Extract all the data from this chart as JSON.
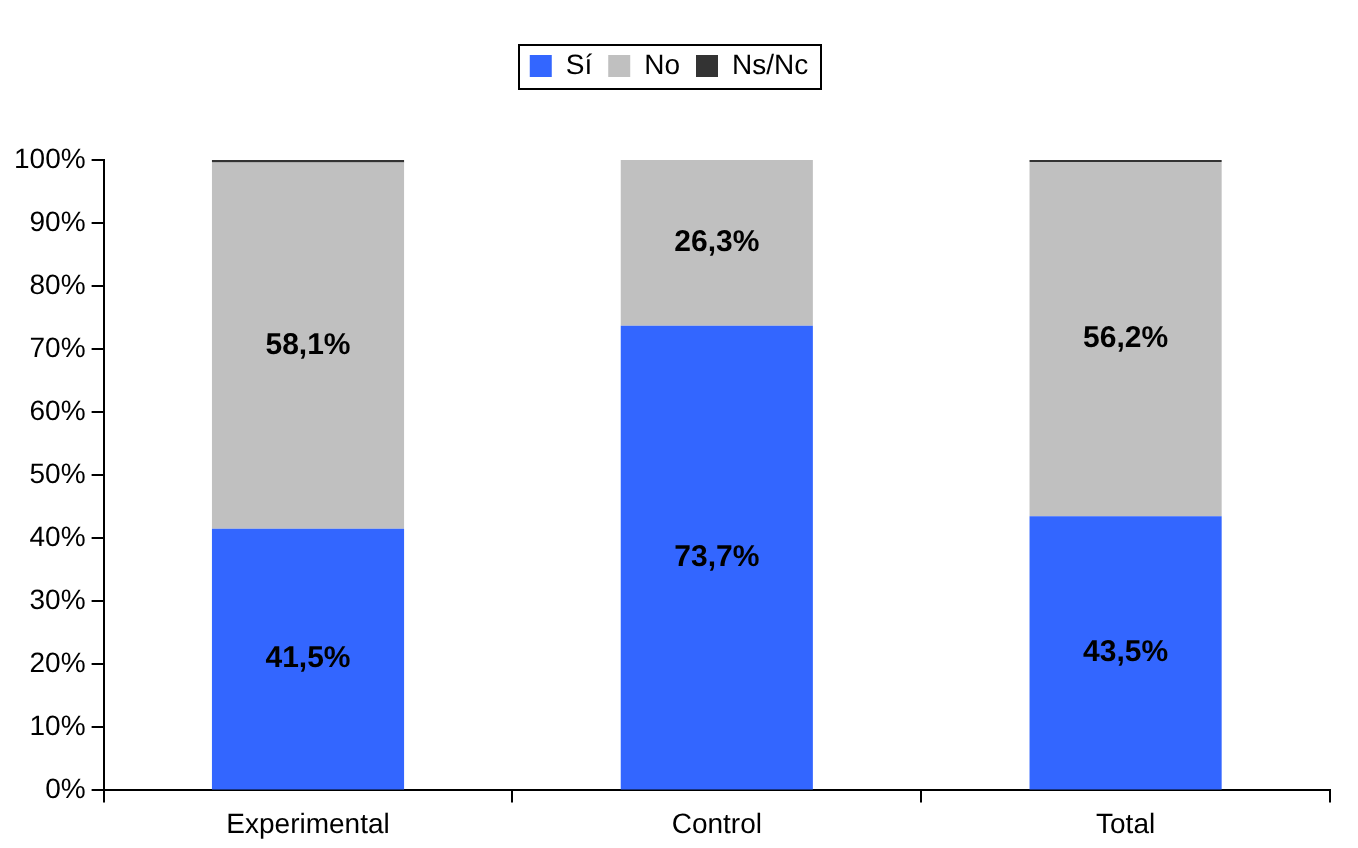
{
  "chart_data": {
    "type": "bar",
    "stacked": true,
    "categories": [
      "Experimental",
      "Control",
      "Total"
    ],
    "series": [
      {
        "name": "Sí",
        "color": "#3366ff",
        "values": [
          41.5,
          73.7,
          43.5
        ],
        "value_labels": [
          "41,5%",
          "73,7%",
          "43,5%"
        ]
      },
      {
        "name": "No",
        "color": "#c0c0c0",
        "values": [
          58.1,
          26.3,
          56.2
        ],
        "value_labels": [
          "58,1%",
          "26,3%",
          "56,2%"
        ]
      },
      {
        "name": "Ns/Nc",
        "color": "#333333",
        "values": [
          0.4,
          0,
          0.3
        ],
        "value_labels": [
          null,
          null,
          null
        ]
      }
    ],
    "ylim": [
      0,
      100
    ],
    "yticks": [
      {
        "value": 0,
        "label": "0%"
      },
      {
        "value": 10,
        "label": "10%"
      },
      {
        "value": 20,
        "label": "20%"
      },
      {
        "value": 30,
        "label": "30%"
      },
      {
        "value": 40,
        "label": "40%"
      },
      {
        "value": 50,
        "label": "50%"
      },
      {
        "value": 60,
        "label": "60%"
      },
      {
        "value": 70,
        "label": "70%"
      },
      {
        "value": 80,
        "label": "80%"
      },
      {
        "value": 90,
        "label": "90%"
      },
      {
        "value": 100,
        "label": "100%"
      }
    ],
    "grid": false,
    "legend": "top"
  }
}
